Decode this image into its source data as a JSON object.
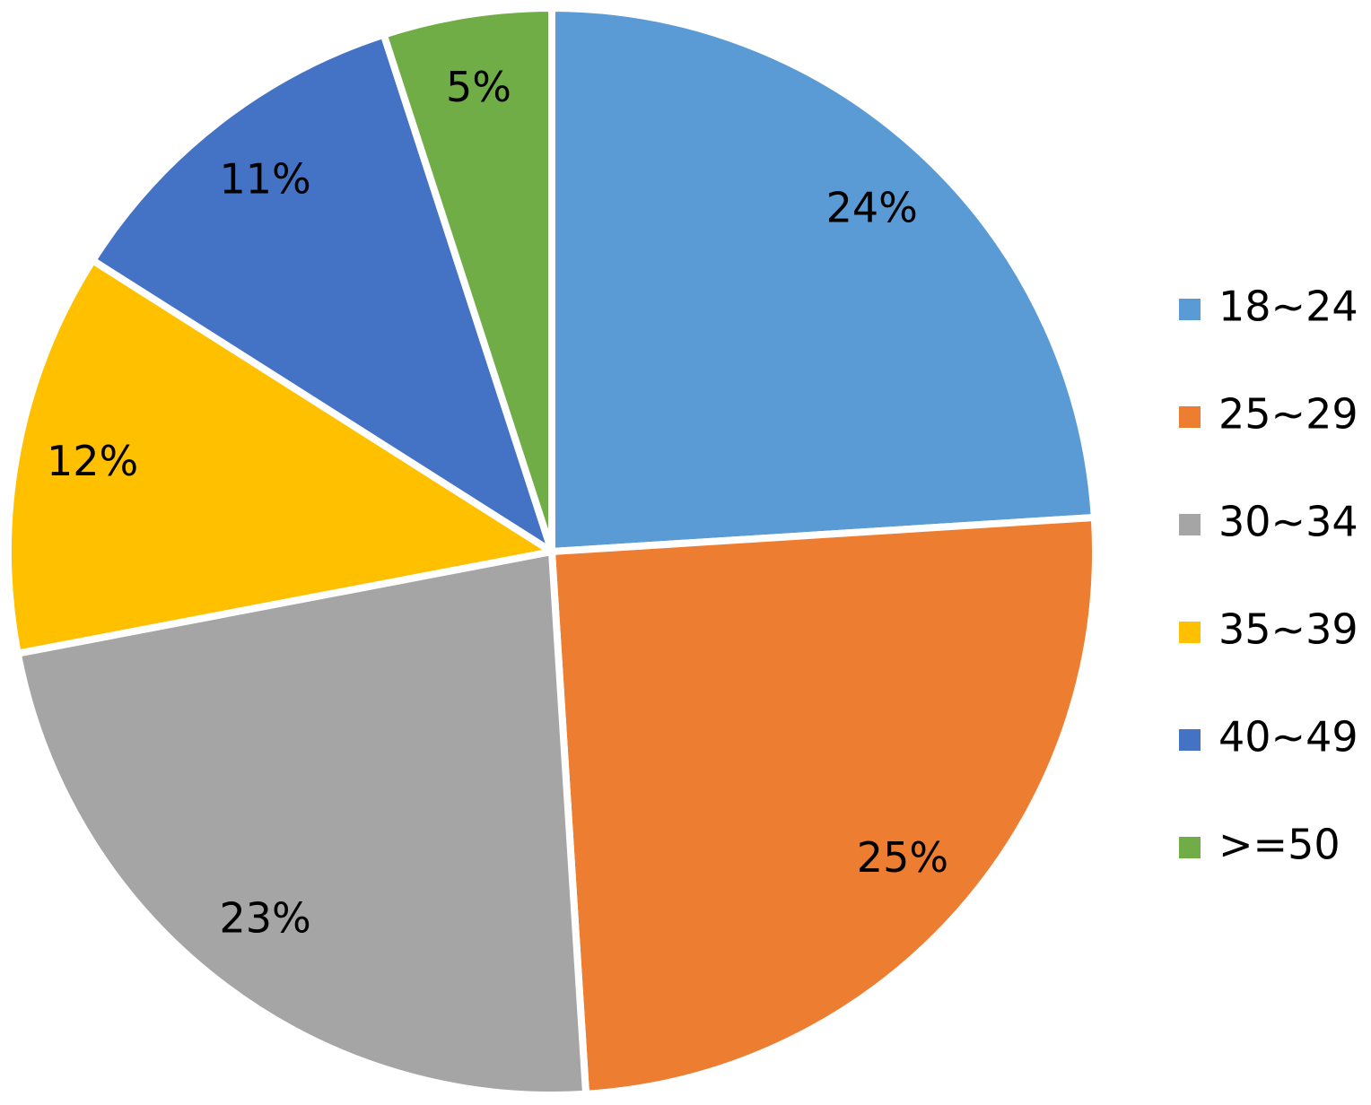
{
  "chart_data": {
    "type": "pie",
    "categories": [
      "18~24",
      "25~29",
      "30~34",
      "35~39",
      "40~49",
      ">=50"
    ],
    "values": [
      24,
      25,
      23,
      12,
      11,
      5
    ],
    "value_labels": [
      "24%",
      "25%",
      "23%",
      "12%",
      "11%",
      "5%"
    ],
    "colors": [
      "#5b9bd5",
      "#ed7d31",
      "#a5a5a5",
      "#ffc000",
      "#4472c4",
      "#70ad47"
    ],
    "legend": "right"
  }
}
